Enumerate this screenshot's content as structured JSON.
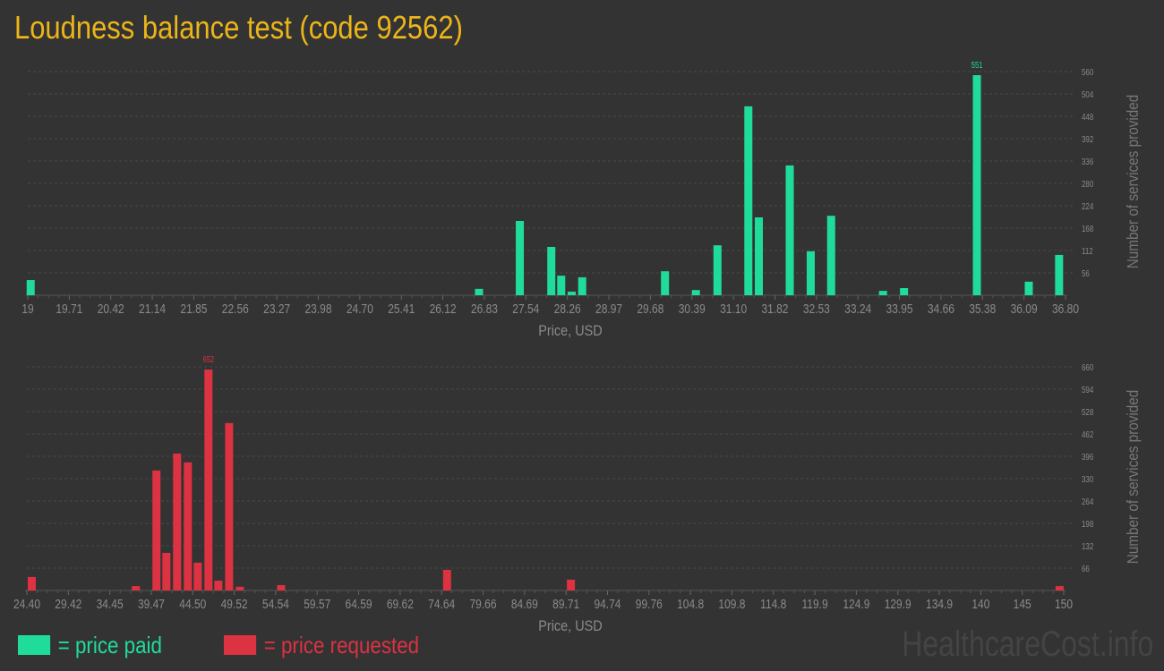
{
  "title": "Loudness balance test (code 92562)",
  "colors": {
    "paid": "#20dc9a",
    "requested": "#dc3242",
    "title": "#ecb519",
    "background": "#333333",
    "axis_text": "#8a8a8a"
  },
  "legend": {
    "paid_label": "= price paid",
    "requested_label": "= price requested"
  },
  "watermark": "HealthcareCost.info",
  "chart_data": [
    {
      "type": "bar",
      "series_name": "price paid",
      "color": "#20dc9a",
      "xlabel": "Price, USD",
      "ylabel": "Number of services provided",
      "xlim": [
        19,
        36.8
      ],
      "ylim": [
        0,
        560
      ],
      "grid": true,
      "x_ticks": [
        "19",
        "19.71",
        "20.42",
        "21.14",
        "21.85",
        "22.56",
        "23.27",
        "23.98",
        "24.70",
        "25.41",
        "26.12",
        "26.83",
        "27.54",
        "28.26",
        "28.97",
        "29.68",
        "30.39",
        "31.10",
        "31.82",
        "32.53",
        "33.24",
        "33.95",
        "34.66",
        "35.38",
        "36.09",
        "36.80"
      ],
      "y_ticks": [
        "56",
        "112",
        "168",
        "224",
        "280",
        "336",
        "392",
        "448",
        "504",
        "560"
      ],
      "max_label": "551",
      "x": [
        19.05,
        26.74,
        27.44,
        27.98,
        28.15,
        28.33,
        28.51,
        29.93,
        30.46,
        30.83,
        31.36,
        31.54,
        32.07,
        32.43,
        32.78,
        33.67,
        34.03,
        35.28,
        36.17,
        36.69
      ],
      "values": [
        38,
        16,
        186,
        121,
        49,
        9,
        45,
        60,
        13,
        125,
        473,
        195,
        325,
        110,
        199,
        11,
        18,
        551,
        34,
        101
      ]
    },
    {
      "type": "bar",
      "series_name": "price requested",
      "color": "#dc3242",
      "xlabel": "Price, USD",
      "ylabel": "Number of services provided",
      "xlim": [
        24.4,
        150
      ],
      "ylim": [
        0,
        660
      ],
      "grid": true,
      "x_ticks": [
        "24.40",
        "29.42",
        "34.45",
        "39.47",
        "44.50",
        "49.52",
        "54.54",
        "59.57",
        "64.59",
        "69.62",
        "74.64",
        "79.66",
        "84.69",
        "89.71",
        "94.74",
        "99.76",
        "104.8",
        "109.8",
        "114.8",
        "119.9",
        "124.9",
        "129.9",
        "134.9",
        "140",
        "145",
        "150"
      ],
      "y_ticks": [
        "66",
        "132",
        "198",
        "264",
        "330",
        "396",
        "462",
        "528",
        "594",
        "660"
      ],
      "max_label": "652",
      "x": [
        25.0,
        37.6,
        40.1,
        41.3,
        42.6,
        43.9,
        45.1,
        46.4,
        47.6,
        48.9,
        50.2,
        55.2,
        75.3,
        90.3,
        149.5
      ],
      "values": [
        40,
        13,
        354,
        111,
        404,
        378,
        82,
        652,
        29,
        494,
        11,
        16,
        61,
        32,
        13
      ]
    }
  ]
}
